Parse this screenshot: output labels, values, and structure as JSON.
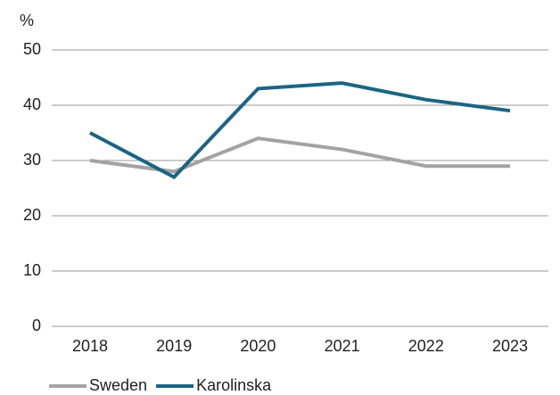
{
  "chart_data": {
    "type": "line",
    "y_label": "%",
    "categories": [
      "2018",
      "2019",
      "2020",
      "2021",
      "2022",
      "2023"
    ],
    "series": [
      {
        "name": "Sweden",
        "color": "#a3a3a3",
        "values": [
          30,
          28,
          34,
          32,
          29,
          29
        ]
      },
      {
        "name": "Karolinska",
        "color": "#1a6585",
        "values": [
          35,
          27,
          43,
          44,
          41,
          39
        ]
      }
    ],
    "ylim": [
      0,
      50
    ],
    "yticks": [
      0,
      10,
      20,
      30,
      40,
      50
    ],
    "grid": true,
    "legend": "bottom-left"
  }
}
